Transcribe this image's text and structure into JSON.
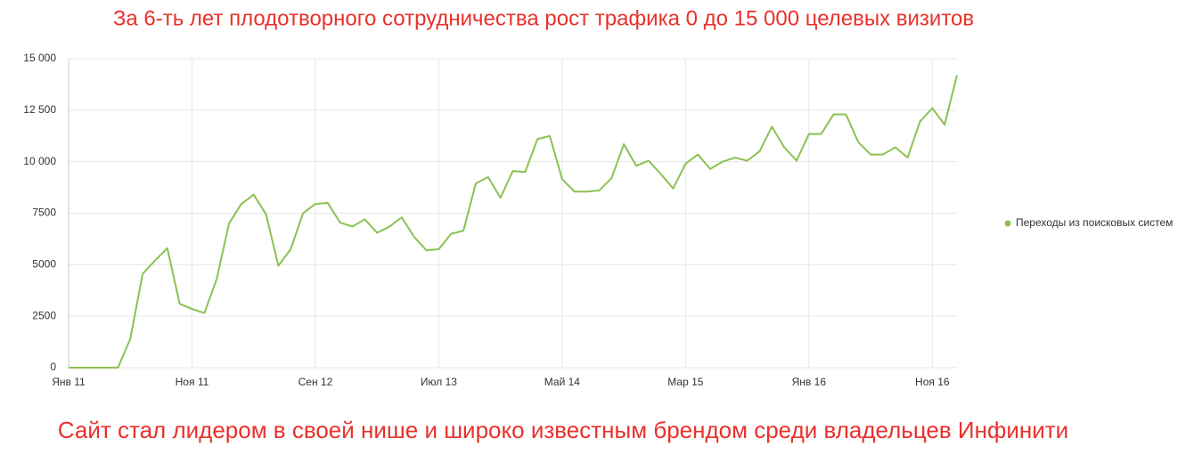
{
  "chart_data": {
    "type": "line",
    "title": "За 6-ть лет плодотворного сотрудничества рост трафика 0 до 15 000 целевых визитов",
    "annotation": "Сайт стал лидером в своей нише и широко известным брендом среди владельцев Инфинити",
    "categories": [
      "Янв 11",
      null,
      null,
      null,
      null,
      null,
      null,
      null,
      null,
      null,
      "Ноя 11",
      null,
      null,
      null,
      null,
      null,
      null,
      null,
      null,
      null,
      "Сен 12",
      null,
      null,
      null,
      null,
      null,
      null,
      null,
      null,
      null,
      "Июл 13",
      null,
      null,
      null,
      null,
      null,
      null,
      null,
      null,
      null,
      "Май 14",
      null,
      null,
      null,
      null,
      null,
      null,
      null,
      null,
      null,
      "Мар 15",
      null,
      null,
      null,
      null,
      null,
      null,
      null,
      null,
      null,
      "Янв 16",
      null,
      null,
      null,
      null,
      null,
      null,
      null,
      null,
      null,
      "Ноя 16",
      null,
      null
    ],
    "series": [
      {
        "name": "Переходы из поисковых систем",
        "color": "#8cc152",
        "values": [
          0,
          0,
          0,
          0,
          0,
          1400,
          4550,
          5200,
          5800,
          3100,
          2850,
          2650,
          4300,
          7000,
          7950,
          8400,
          7450,
          4950,
          5750,
          7500,
          7950,
          8000,
          7050,
          6850,
          7200,
          6550,
          6850,
          7300,
          6350,
          5700,
          5750,
          6500,
          6650,
          8950,
          9250,
          8250,
          9550,
          9500,
          11100,
          11250,
          9150,
          8550,
          8550,
          8600,
          9200,
          10850,
          9800,
          10050,
          9400,
          8700,
          9900,
          10350,
          9650,
          10000,
          10200,
          10050,
          10500,
          11700,
          10700,
          10050,
          11350,
          11350,
          12300,
          12300,
          10950,
          10350,
          10350,
          10700,
          10200,
          11950,
          12600,
          11800,
          14200
        ]
      }
    ],
    "ylim": [
      0,
      15000
    ],
    "yticks": [
      0,
      2500,
      5000,
      7500,
      {
        "value": 10000,
        "label": "10 000"
      },
      {
        "value": 12500,
        "label": "12 500"
      },
      {
        "value": 15000,
        "label": "15 000"
      }
    ],
    "grid": true,
    "legend": "right"
  }
}
